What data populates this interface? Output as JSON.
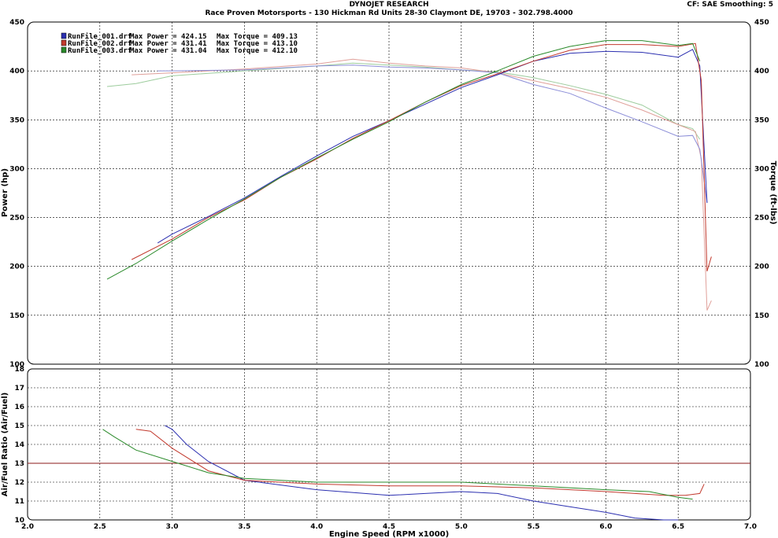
{
  "header": {
    "title": "DYNOJET RESEARCH",
    "subtitle": "Race Proven Motorsports - 130 Hickman Rd Units 28-30 Claymont DE, 19703 - 302.798.4000",
    "settings": "CF: SAE  Smoothing: 5"
  },
  "legend": [
    {
      "name": "RunFile_001.drf",
      "power_text": "Max Power = 424.15",
      "torque_text": "Max Torque = 409.13",
      "color": "#2b2fb0"
    },
    {
      "name": "RunFile_002.drf",
      "power_text": "Max Power = 431.41",
      "torque_text": "Max Torque = 413.10",
      "color": "#c23a2e"
    },
    {
      "name": "RunFile_003.drf",
      "power_text": "Max Power = 431.04",
      "torque_text": "Max Torque = 412.10",
      "color": "#2a8a2a"
    }
  ],
  "chart_data": [
    {
      "type": "line",
      "xlabel": "Engine Speed (RPM x1000)",
      "ylabel": "Power (hp)",
      "y2label": "Torque (ft-lbs)",
      "xlim": [
        2.0,
        7.0
      ],
      "ylim": [
        100,
        450
      ],
      "y2lim": [
        100,
        450
      ],
      "xticks": [
        "2.0",
        "2.5",
        "3.0",
        "3.5",
        "4.0",
        "4.5",
        "5.0",
        "5.5",
        "6.0",
        "6.5",
        "7.0"
      ],
      "yticks": [
        "100",
        "150",
        "200",
        "250",
        "300",
        "350",
        "400",
        "450"
      ],
      "grid": true,
      "legend_position": "top-left",
      "series": [
        {
          "name": "RunFile_001.drf",
          "measure": "power",
          "color": "#2b2fb0",
          "x": [
            2.9,
            3.0,
            3.25,
            3.5,
            3.75,
            4.0,
            4.25,
            4.5,
            4.75,
            5.0,
            5.25,
            5.5,
            5.75,
            6.0,
            6.25,
            6.5,
            6.6,
            6.65,
            6.7
          ],
          "y": [
            224,
            233,
            251,
            270,
            292,
            313,
            333,
            349,
            366,
            383,
            396,
            410,
            418,
            420,
            419,
            414,
            422,
            405,
            265
          ]
        },
        {
          "name": "RunFile_002.drf",
          "measure": "power",
          "color": "#c23a2e",
          "x": [
            2.72,
            3.0,
            3.25,
            3.5,
            3.75,
            4.0,
            4.25,
            4.5,
            4.75,
            5.0,
            5.25,
            5.5,
            5.75,
            6.0,
            6.25,
            6.5,
            6.62,
            6.66,
            6.7,
            6.73
          ],
          "y": [
            207,
            228,
            250,
            268,
            291,
            310,
            331,
            349,
            368,
            385,
            397,
            410,
            421,
            427,
            427,
            425,
            428,
            390,
            195,
            210
          ]
        },
        {
          "name": "RunFile_003.drf",
          "measure": "power",
          "color": "#2a8a2a",
          "x": [
            2.55,
            2.75,
            3.0,
            3.25,
            3.5,
            3.75,
            4.0,
            4.25,
            4.5,
            4.75,
            5.0,
            5.25,
            5.5,
            5.75,
            6.0,
            6.25,
            6.5,
            6.6,
            6.65
          ],
          "y": [
            187,
            203,
            226,
            248,
            269,
            291,
            311,
            330,
            348,
            368,
            386,
            400,
            415,
            425,
            431,
            431,
            426,
            428,
            410
          ]
        },
        {
          "name": "RunFile_001.drf",
          "measure": "torque",
          "color": "#8c8ed8",
          "x": [
            2.9,
            3.0,
            3.5,
            4.0,
            4.25,
            4.5,
            4.75,
            5.0,
            5.25,
            5.5,
            5.75,
            6.0,
            6.25,
            6.5,
            6.6,
            6.65,
            6.7
          ],
          "y": [
            400,
            400,
            401,
            405,
            406,
            404,
            403,
            401,
            398,
            386,
            377,
            362,
            348,
            333,
            334,
            320,
            265
          ]
        },
        {
          "name": "RunFile_002.drf",
          "measure": "torque",
          "color": "#e0a09a",
          "x": [
            2.72,
            3.0,
            3.5,
            4.0,
            4.25,
            4.5,
            4.75,
            5.0,
            5.25,
            5.5,
            5.75,
            6.0,
            6.25,
            6.5,
            6.62,
            6.66,
            6.7,
            6.73
          ],
          "y": [
            396,
            398,
            402,
            407,
            412,
            408,
            405,
            403,
            398,
            390,
            382,
            373,
            360,
            345,
            338,
            310,
            155,
            165
          ]
        },
        {
          "name": "RunFile_003.drf",
          "measure": "torque",
          "color": "#9dcc9d",
          "x": [
            2.55,
            2.75,
            3.0,
            3.5,
            4.0,
            4.25,
            4.5,
            4.75,
            5.0,
            5.25,
            5.5,
            5.75,
            6.0,
            6.25,
            6.5,
            6.6,
            6.65
          ],
          "y": [
            384,
            387,
            395,
            400,
            405,
            408,
            406,
            404,
            401,
            399,
            393,
            385,
            376,
            365,
            345,
            341,
            330
          ]
        }
      ]
    },
    {
      "type": "line",
      "xlabel": "Engine Speed (RPM x1000)",
      "ylabel": "Air/Fuel Ratio (Air/Fuel)",
      "xlim": [
        2.0,
        7.0
      ],
      "ylim": [
        10,
        18
      ],
      "xticks": [
        "2.0",
        "2.5",
        "3.0",
        "3.5",
        "4.0",
        "4.5",
        "5.0",
        "5.5",
        "6.0",
        "6.5",
        "7.0"
      ],
      "yticks": [
        "10",
        "11",
        "12",
        "13",
        "14",
        "15",
        "16",
        "17",
        "18"
      ],
      "grid": true,
      "reference_line": {
        "y": 13,
        "color": "#8b1a1a"
      },
      "series": [
        {
          "name": "RunFile_001.drf",
          "color": "#2b2fb0",
          "x": [
            2.95,
            3.0,
            3.1,
            3.25,
            3.5,
            4.0,
            4.5,
            4.75,
            5.0,
            5.25,
            5.5,
            5.75,
            6.0,
            6.2,
            6.4,
            6.5
          ],
          "y": [
            15.0,
            14.8,
            14.0,
            13.1,
            12.1,
            11.6,
            11.3,
            11.4,
            11.5,
            11.4,
            11.0,
            10.7,
            10.4,
            10.1,
            10.0,
            10.0
          ]
        },
        {
          "name": "RunFile_002.drf",
          "color": "#c23a2e",
          "x": [
            2.75,
            2.85,
            3.0,
            3.25,
            3.5,
            4.0,
            4.5,
            5.0,
            5.5,
            6.0,
            6.4,
            6.55,
            6.65,
            6.68
          ],
          "y": [
            14.8,
            14.7,
            13.8,
            12.6,
            12.1,
            11.9,
            11.8,
            11.8,
            11.7,
            11.5,
            11.3,
            11.3,
            11.4,
            11.9
          ]
        },
        {
          "name": "RunFile_003.drf",
          "color": "#2a8a2a",
          "x": [
            2.52,
            2.6,
            2.75,
            3.0,
            3.25,
            3.5,
            4.0,
            4.5,
            5.0,
            5.5,
            6.0,
            6.3,
            6.5,
            6.6
          ],
          "y": [
            14.8,
            14.4,
            13.7,
            13.1,
            12.5,
            12.2,
            12.0,
            12.0,
            12.0,
            11.8,
            11.6,
            11.5,
            11.2,
            11.1
          ]
        }
      ]
    }
  ]
}
